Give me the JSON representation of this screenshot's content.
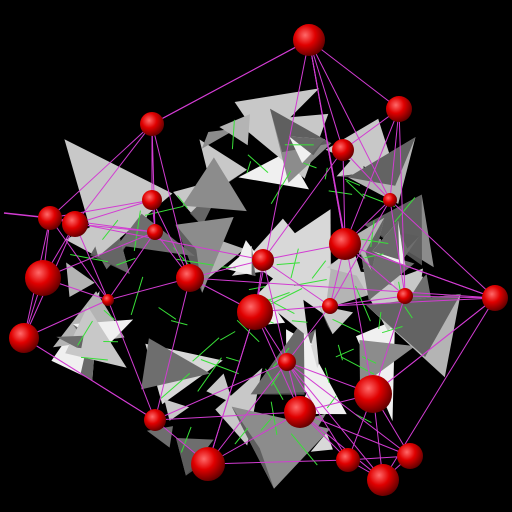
{
  "colors": {
    "background": "#000000",
    "node": "#e00000",
    "node_highlight": "#ff6a6a",
    "node_shadow": "#5a0000",
    "magenta_edge": "#d23cd2",
    "green_edge": "#38e038",
    "face_light": "#f0f0f0",
    "face_mid": "#b4b4b4",
    "face_dark": "#6e6e6e"
  },
  "scene": {
    "node_count": 27,
    "face_count": 64,
    "green_edge_count": 70
  }
}
